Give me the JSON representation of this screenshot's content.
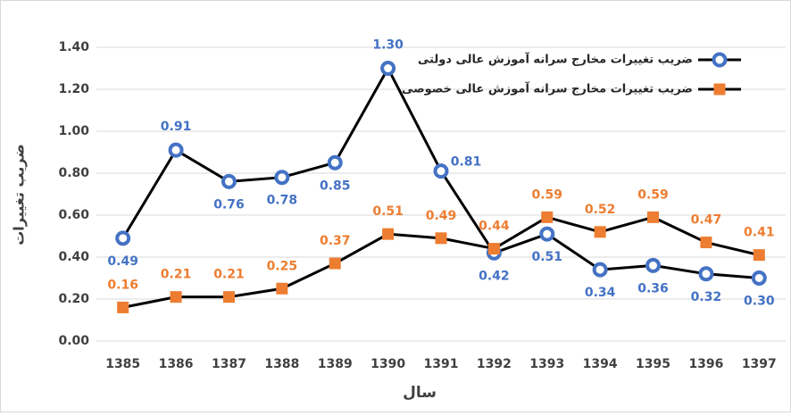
{
  "chart_data": {
    "type": "line",
    "x_label": "سال",
    "y_label": "ضریب تغییرات",
    "categories": [
      "1385",
      "1386",
      "1387",
      "1388",
      "1389",
      "1390",
      "1391",
      "1392",
      "1393",
      "1394",
      "1395",
      "1396",
      "1397"
    ],
    "line_color": "#000000",
    "series": [
      {
        "name": "ضریب تغییرات مخارج سرانه آموزش عالی دولتی",
        "color": "#4472c4",
        "marker": "circle",
        "values": [
          0.49,
          0.91,
          0.76,
          0.78,
          0.85,
          1.3,
          0.81,
          0.42,
          0.51,
          0.34,
          0.36,
          0.32,
          0.3
        ],
        "value_labels": [
          "0.49",
          "0.91",
          "0.76",
          "0.78",
          "0.85",
          "1.30",
          "0.81",
          "0.42",
          "0.51",
          "0.34",
          "0.36",
          "0.32",
          "0.30"
        ]
      },
      {
        "name": "ضریب تغییرات مخارج سرانه آموزش عالی خصوصی",
        "color": "#ed7d31",
        "marker": "square",
        "values": [
          0.16,
          0.21,
          0.21,
          0.25,
          0.37,
          0.51,
          0.49,
          0.44,
          0.59,
          0.52,
          0.59,
          0.47,
          0.41
        ],
        "value_labels": [
          "0.16",
          "0.21",
          "0.21",
          "0.25",
          "0.37",
          "0.51",
          "0.49",
          "0.44",
          "0.59",
          "0.52",
          "0.59",
          "0.47",
          "0.41"
        ]
      }
    ],
    "ylim": [
      0,
      1.4
    ],
    "yticks": [
      {
        "value": 0,
        "label": "0.00"
      },
      {
        "value": 0.2,
        "label": "0.20"
      },
      {
        "value": 0.4,
        "label": "0.40"
      },
      {
        "value": 0.6,
        "label": "0.60"
      },
      {
        "value": 0.8,
        "label": "0.80"
      },
      {
        "value": 1,
        "label": "1.00"
      },
      {
        "value": 1.2,
        "label": "1.20"
      },
      {
        "value": 1.4,
        "label": "1.40"
      }
    ],
    "grid": true,
    "legend": "top-right"
  }
}
